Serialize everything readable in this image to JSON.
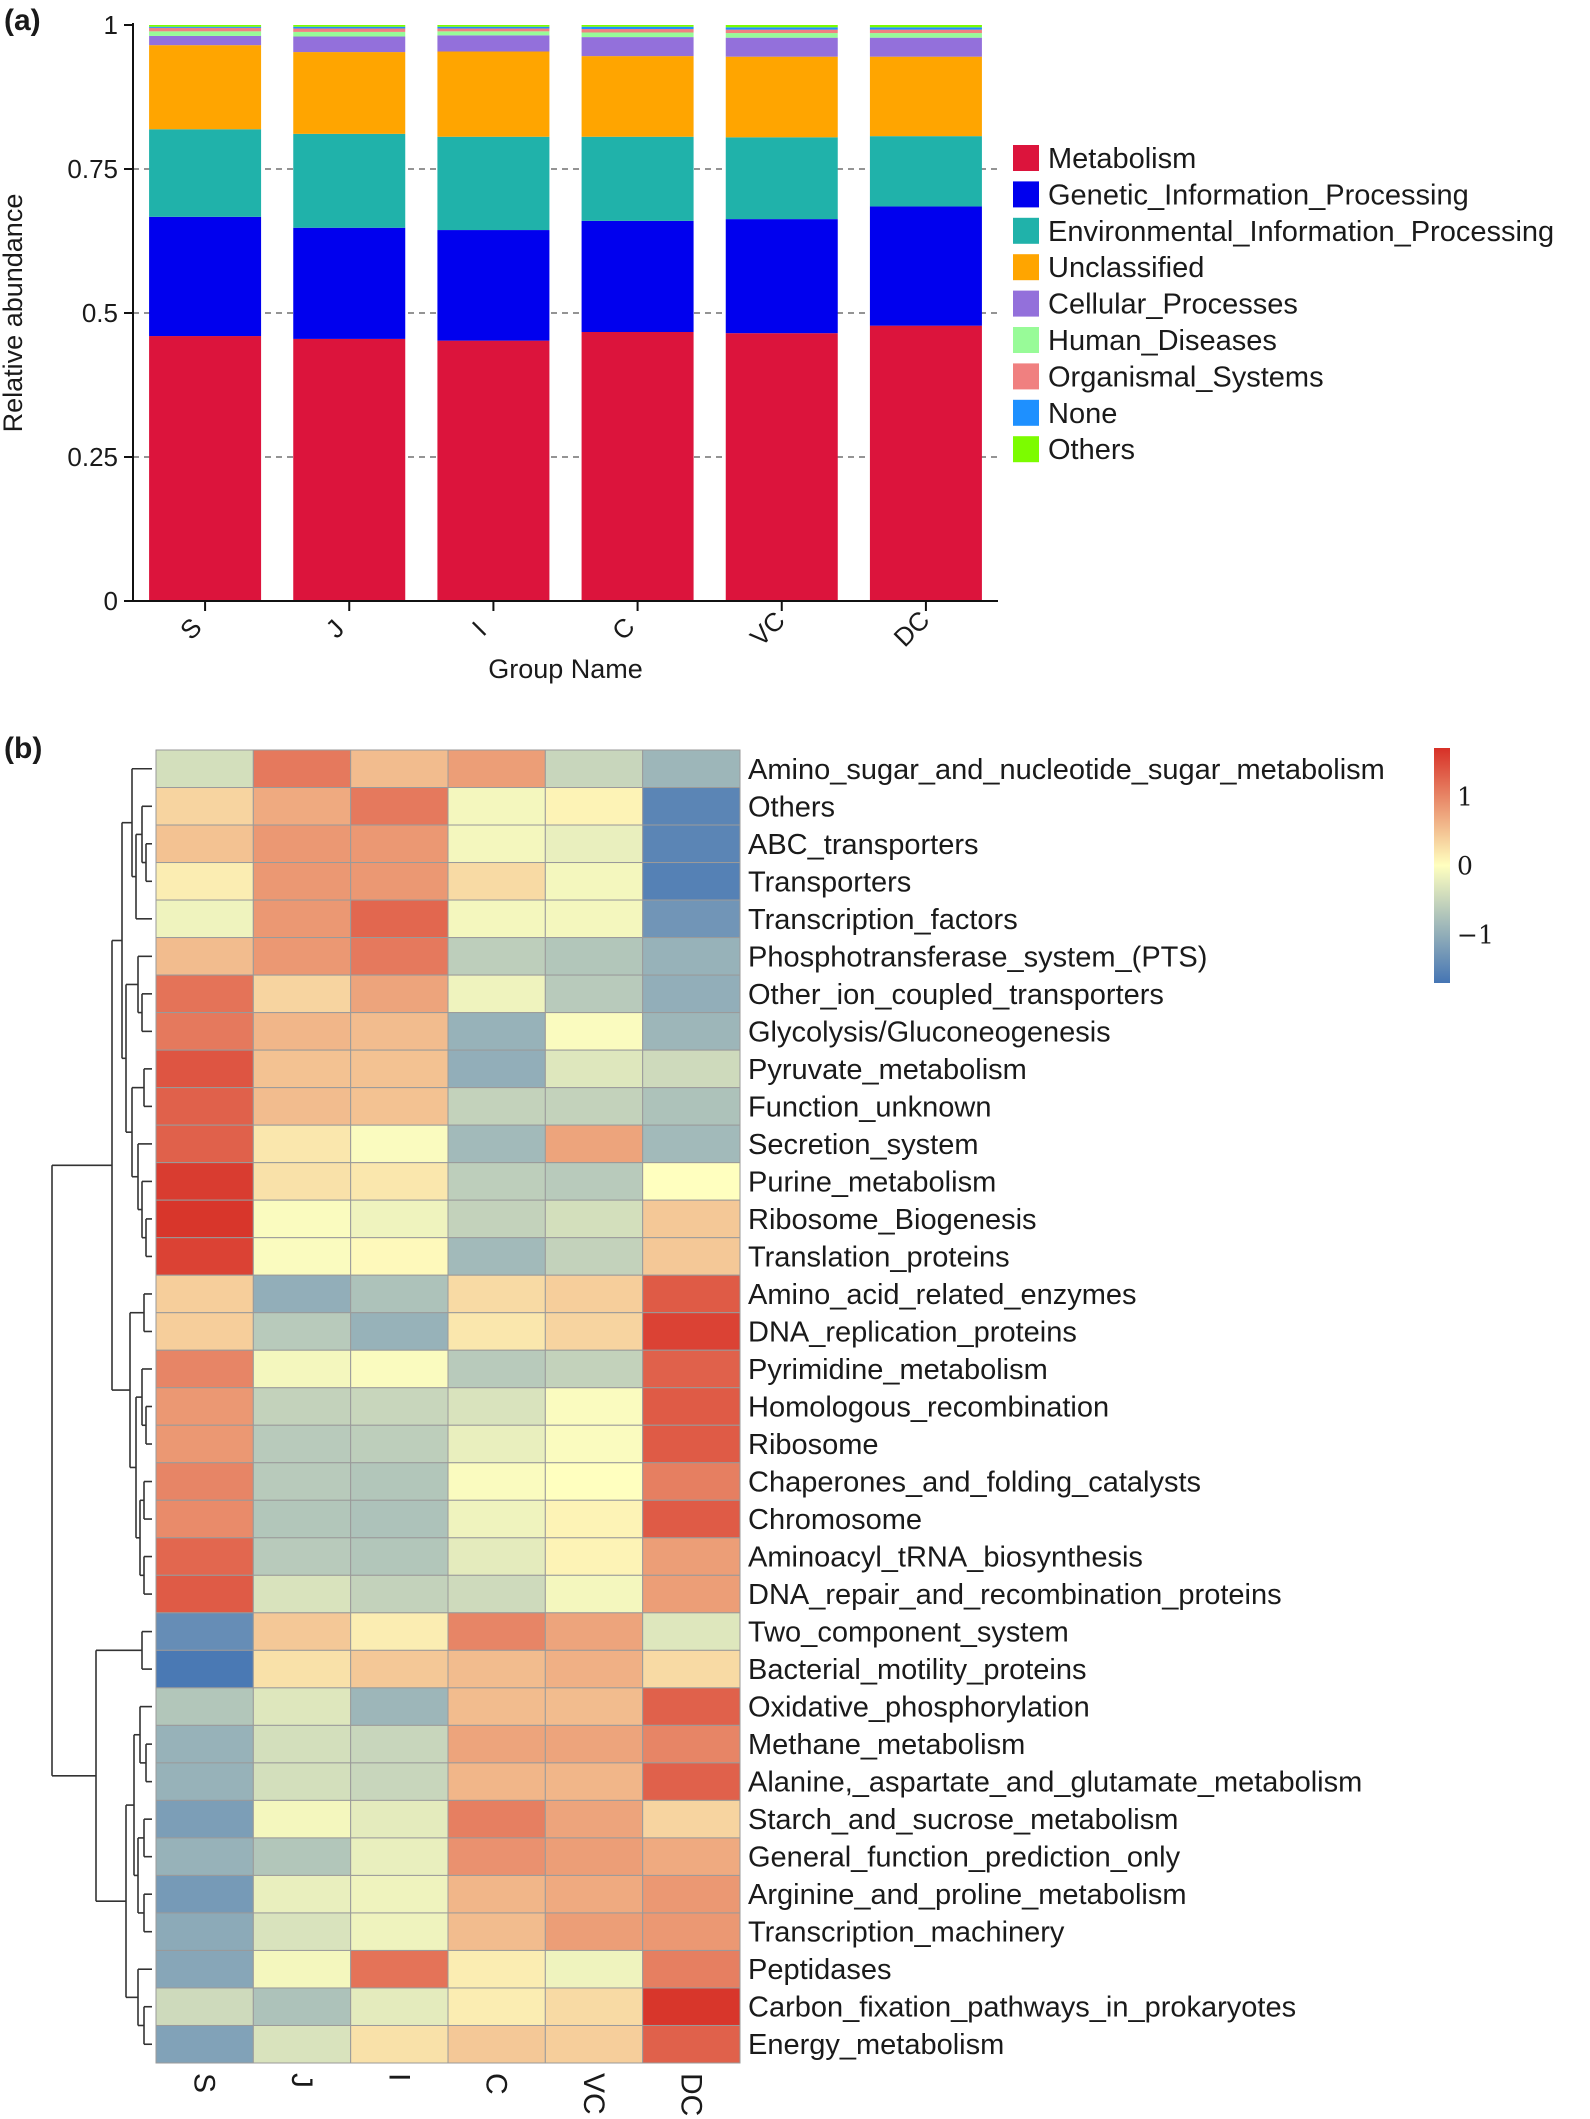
{
  "panel_labels": {
    "a": "(a)",
    "b": "(b)"
  },
  "chart_data": [
    {
      "type": "bar",
      "stacked": true,
      "xlabel": "Group Name",
      "ylabel": "Relative abundance",
      "ylim": [
        0,
        1
      ],
      "yticks": [
        0,
        0.25,
        0.5,
        0.75,
        1
      ],
      "ytick_labels": [
        "0",
        "0.25",
        "0.5",
        "0.75",
        "1"
      ],
      "grid": "dashed horizontal at 0.25, 0.5, 0.75",
      "legend_position": "right",
      "categories": [
        "S",
        "J",
        "I",
        "C",
        "VC",
        "DC"
      ],
      "series": [
        {
          "name": "Metabolism",
          "color": "#DC143C",
          "values": [
            0.46,
            0.455,
            0.452,
            0.467,
            0.465,
            0.478
          ]
        },
        {
          "name": "Genetic_Information_Processing",
          "color": "#0000EE",
          "values": [
            0.207,
            0.193,
            0.192,
            0.193,
            0.198,
            0.207
          ]
        },
        {
          "name": "Environmental_Information_Processing",
          "color": "#20B2AA",
          "values": [
            0.152,
            0.163,
            0.162,
            0.146,
            0.142,
            0.122
          ]
        },
        {
          "name": "Unclassified",
          "color": "#FFA500",
          "values": [
            0.146,
            0.142,
            0.148,
            0.14,
            0.14,
            0.138
          ]
        },
        {
          "name": "Cellular_Processes",
          "color": "#9370DB",
          "values": [
            0.016,
            0.027,
            0.028,
            0.033,
            0.033,
            0.033
          ]
        },
        {
          "name": "Human_Diseases",
          "color": "#98FB98",
          "values": [
            0.008,
            0.008,
            0.007,
            0.008,
            0.008,
            0.008
          ]
        },
        {
          "name": "Organismal_Systems",
          "color": "#F08080",
          "values": [
            0.006,
            0.006,
            0.005,
            0.006,
            0.006,
            0.006
          ]
        },
        {
          "name": "None",
          "color": "#1E90FF",
          "values": [
            0.002,
            0.003,
            0.003,
            0.004,
            0.004,
            0.004
          ]
        },
        {
          "name": "Others",
          "color": "#7CFC00",
          "values": [
            0.003,
            0.003,
            0.003,
            0.003,
            0.004,
            0.004
          ]
        }
      ]
    },
    {
      "type": "heatmap",
      "columns": [
        "S",
        "J",
        "I",
        "C",
        "VC",
        "DC"
      ],
      "colorbar": {
        "ticks": [
          1,
          0,
          -1
        ],
        "tick_labels": [
          "1",
          "0",
          "−1"
        ],
        "range": [
          -1.7,
          1.7
        ]
      },
      "palette": {
        "low": "#4575B4",
        "mid": "#FFFFBF",
        "high": "#D73027"
      },
      "dendrogram": "rows clustered (hierarchical)",
      "rows": [
        {
          "name": "Amino_sugar_and_nucleotide_sugar_metabolism",
          "values": [
            -0.4,
            1.1,
            0.55,
            0.8,
            -0.5,
            -0.9
          ]
        },
        {
          "name": "Others",
          "values": [
            0.35,
            0.7,
            1.1,
            -0.1,
            0.1,
            -1.5
          ]
        },
        {
          "name": "ABC_transporters",
          "values": [
            0.5,
            0.85,
            0.85,
            -0.1,
            -0.2,
            -1.5
          ]
        },
        {
          "name": "Transporters",
          "values": [
            0.15,
            0.85,
            0.85,
            0.3,
            -0.1,
            -1.55
          ]
        },
        {
          "name": "Transcription_factors",
          "values": [
            -0.15,
            0.85,
            1.25,
            -0.1,
            -0.1,
            -1.3
          ]
        },
        {
          "name": "Phosphotransferase_system_(PTS)",
          "values": [
            0.55,
            0.85,
            1.1,
            -0.6,
            -0.7,
            -0.95
          ]
        },
        {
          "name": "Other_ion_coupled_transporters",
          "values": [
            1.15,
            0.35,
            0.75,
            -0.15,
            -0.65,
            -1.0
          ]
        },
        {
          "name": "Glycolysis/Gluconeogenesis",
          "values": [
            1.1,
            0.6,
            0.55,
            -0.95,
            -0.05,
            -0.9
          ]
        },
        {
          "name": "Pyruvate_metabolism",
          "values": [
            1.4,
            0.5,
            0.5,
            -1.0,
            -0.3,
            -0.45
          ]
        },
        {
          "name": "Function_unknown",
          "values": [
            1.3,
            0.55,
            0.5,
            -0.55,
            -0.55,
            -0.75
          ]
        },
        {
          "name": "Secretion_system",
          "values": [
            1.3,
            0.2,
            -0.05,
            -0.85,
            0.75,
            -0.85
          ]
        },
        {
          "name": "Purine_metabolism",
          "values": [
            1.6,
            0.25,
            0.2,
            -0.6,
            -0.65,
            0.0
          ]
        },
        {
          "name": "Ribosome_Biogenesis",
          "values": [
            1.65,
            -0.05,
            -0.15,
            -0.55,
            -0.4,
            0.45
          ]
        },
        {
          "name": "Translation_proteins",
          "values": [
            1.55,
            -0.05,
            0.05,
            -0.85,
            -0.55,
            0.45
          ]
        },
        {
          "name": "Amino_acid_related_enzymes",
          "values": [
            0.4,
            -1.0,
            -0.75,
            0.3,
            0.4,
            1.35
          ]
        },
        {
          "name": "DNA_replication_proteins",
          "values": [
            0.4,
            -0.65,
            -0.95,
            0.2,
            0.35,
            1.55
          ]
        },
        {
          "name": "Pyrimidine_metabolism",
          "values": [
            1.0,
            -0.1,
            -0.05,
            -0.65,
            -0.55,
            1.3
          ]
        },
        {
          "name": "Homologous_recombination",
          "values": [
            0.85,
            -0.55,
            -0.5,
            -0.35,
            -0.05,
            1.35
          ]
        },
        {
          "name": "Ribosome",
          "values": [
            0.85,
            -0.65,
            -0.6,
            -0.2,
            -0.05,
            1.35
          ]
        },
        {
          "name": "Chaperones_and_folding_catalysts",
          "values": [
            1.0,
            -0.65,
            -0.7,
            -0.05,
            0.0,
            1.05
          ]
        },
        {
          "name": "Chromosome",
          "values": [
            0.95,
            -0.7,
            -0.75,
            -0.15,
            0.1,
            1.35
          ]
        },
        {
          "name": "Aminoacyl_tRNA_biosynthesis",
          "values": [
            1.25,
            -0.65,
            -0.7,
            -0.25,
            0.1,
            0.8
          ]
        },
        {
          "name": "DNA_repair_and_recombination_proteins",
          "values": [
            1.35,
            -0.35,
            -0.55,
            -0.45,
            -0.1,
            0.8
          ]
        },
        {
          "name": "Two_component_system",
          "values": [
            -1.4,
            0.45,
            0.15,
            1.0,
            0.75,
            -0.3
          ]
        },
        {
          "name": "Bacterial_motility_proteins",
          "values": [
            -1.65,
            0.25,
            0.45,
            0.55,
            0.65,
            0.3
          ]
        },
        {
          "name": "Oxidative_phosphorylation",
          "values": [
            -0.7,
            -0.3,
            -0.9,
            0.55,
            0.55,
            1.3
          ]
        },
        {
          "name": "Methane_metabolism",
          "values": [
            -0.95,
            -0.4,
            -0.5,
            0.75,
            0.75,
            1.0
          ]
        },
        {
          "name": "Alanine,_aspartate_and_glutamate_metabolism",
          "values": [
            -0.95,
            -0.4,
            -0.5,
            0.6,
            0.6,
            1.3
          ]
        },
        {
          "name": "Starch_and_sucrose_metabolism",
          "values": [
            -1.2,
            -0.1,
            -0.25,
            1.05,
            0.75,
            0.35
          ]
        },
        {
          "name": "General_function_prediction_only",
          "values": [
            -0.95,
            -0.7,
            -0.2,
            0.9,
            0.8,
            0.7
          ]
        },
        {
          "name": "Arginine_and_proline_metabolism",
          "values": [
            -1.25,
            -0.2,
            -0.15,
            0.6,
            0.7,
            0.85
          ]
        },
        {
          "name": "Transcription_machinery",
          "values": [
            -1.05,
            -0.35,
            -0.15,
            0.55,
            0.8,
            0.85
          ]
        },
        {
          "name": "Peptidases",
          "values": [
            -1.1,
            -0.1,
            1.15,
            0.15,
            -0.15,
            1.05
          ]
        },
        {
          "name": "Carbon_fixation_pathways_in_prokaryotes",
          "values": [
            -0.45,
            -0.75,
            -0.25,
            0.15,
            0.3,
            1.65
          ]
        },
        {
          "name": "Energy_metabolism",
          "values": [
            -1.15,
            -0.35,
            0.25,
            0.45,
            0.4,
            1.3
          ]
        }
      ]
    }
  ]
}
